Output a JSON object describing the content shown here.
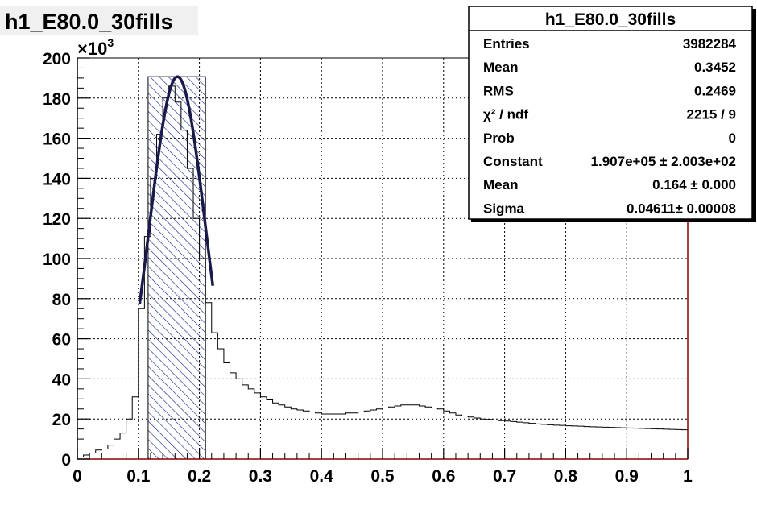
{
  "chart_data": {
    "type": "bar",
    "title": "h1_E80.0_30fills",
    "x_tick_labels": [
      "0",
      "0.1",
      "0.2",
      "0.3",
      "0.4",
      "0.5",
      "0.6",
      "0.7",
      "0.8",
      "0.9",
      "1"
    ],
    "y_tick_labels": [
      "0",
      "20",
      "40",
      "60",
      "80",
      "100",
      "120",
      "140",
      "160",
      "180",
      "200"
    ],
    "y_multiplier": "×10",
    "y_multiplier_exponent": "3",
    "xlim": [
      0,
      1
    ],
    "ylim": [
      0,
      200000
    ],
    "grid": true,
    "histogram": {
      "bin_width": 0.01,
      "values": [
        1000,
        2000,
        3000,
        4500,
        5000,
        7000,
        10000,
        13000,
        20000,
        31000,
        75000,
        111000,
        140000,
        162000,
        180000,
        186000,
        178000,
        164000,
        145000,
        120000,
        100000,
        78000,
        63000,
        55000,
        48000,
        43000,
        40000,
        37000,
        35000,
        33000,
        31000,
        29500,
        28000,
        27000,
        26000,
        25000,
        24500,
        24000,
        23500,
        23000,
        22500,
        22500,
        22500,
        22500,
        23000,
        23000,
        23500,
        24000,
        24500,
        25000,
        25500,
        26000,
        26500,
        27000,
        27000,
        27000,
        26500,
        26000,
        25500,
        25000,
        24000,
        23000,
        22000,
        21500,
        21000,
        20500,
        20000,
        19800,
        19500,
        19200,
        19000,
        18700,
        18400,
        18100,
        17800,
        17500,
        17300,
        17100,
        16900,
        16800,
        16600,
        16500,
        16400,
        16200,
        16100,
        16000,
        15900,
        15800,
        15700,
        15600,
        15500,
        15400,
        15300,
        15200,
        15100,
        15000,
        14900,
        14800,
        14700,
        14600
      ]
    },
    "fit": {
      "function": "gaussian",
      "constant": 190700,
      "mean": 0.164,
      "sigma": 0.04611,
      "range": [
        0.102,
        0.222
      ]
    },
    "fit_range_box": {
      "x": [
        0.116,
        0.21
      ],
      "y": [
        0,
        190700
      ]
    },
    "stats_box": {
      "title": "h1_E80.0_30fills",
      "rows": [
        {
          "label": "Entries",
          "value": "3982284"
        },
        {
          "label": "Mean",
          "value": "0.3452"
        },
        {
          "label": "RMS",
          "value": "0.2469"
        },
        {
          "label": "χ² / ndf",
          "value": "2215 / 9"
        },
        {
          "label": "Prob",
          "value": "0"
        },
        {
          "label": "Constant",
          "value": "1.907e+05 ± 2.003e+02"
        },
        {
          "label": "Mean",
          "value": "0.164 ± 0.000"
        },
        {
          "label": "Sigma",
          "value": "0.04611± 0.00008"
        }
      ]
    },
    "colors": {
      "fill_hatch": "#1a2a8c",
      "fit_line": "#1a1a4a",
      "axis": "#000000",
      "frame_right": "#8b0000",
      "title_bg": "#f0f0f0"
    }
  }
}
